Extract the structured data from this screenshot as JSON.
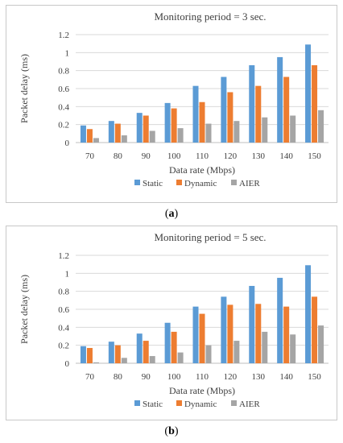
{
  "colors": {
    "static": "#5b9bd5",
    "dynamic": "#ed7d31",
    "aier": "#a5a5a5",
    "grid": "#d9d9d9",
    "axis": "#bfbfbf",
    "text": "#404040"
  },
  "captions": [
    {
      "open": "(",
      "letter": "a",
      "close": ")"
    },
    {
      "open": "(",
      "letter": "b",
      "close": ")"
    }
  ],
  "chart_data": [
    {
      "type": "bar",
      "title": "Monitoring period = 3 sec.",
      "xlabel": "Data rate (Mbps)",
      "ylabel": "Packet delay (ms)",
      "categories": [
        "70",
        "80",
        "90",
        "100",
        "110",
        "120",
        "130",
        "140",
        "150"
      ],
      "ylim": [
        0,
        1.2
      ],
      "yticks": [
        "0",
        "0.2",
        "0.4",
        "0.6",
        "0.8",
        "1",
        "1.2"
      ],
      "grid": true,
      "legend_position": "bottom",
      "series": [
        {
          "name": "Static",
          "values": [
            0.19,
            0.24,
            0.33,
            0.44,
            0.63,
            0.73,
            0.86,
            0.95,
            1.09
          ]
        },
        {
          "name": "Dynamic",
          "values": [
            0.15,
            0.21,
            0.3,
            0.38,
            0.45,
            0.56,
            0.63,
            0.73,
            0.86
          ]
        },
        {
          "name": "AIER",
          "values": [
            0.05,
            0.08,
            0.13,
            0.16,
            0.21,
            0.24,
            0.28,
            0.3,
            0.36
          ]
        }
      ]
    },
    {
      "type": "bar",
      "title": "Monitoring period = 5 sec.",
      "xlabel": "Data rate (Mbps)",
      "ylabel": "Packet delay (ms)",
      "categories": [
        "70",
        "80",
        "90",
        "100",
        "110",
        "120",
        "130",
        "140",
        "150"
      ],
      "ylim": [
        0,
        1.2
      ],
      "yticks": [
        "0",
        "0.2",
        "0.4",
        "0.6",
        "0.8",
        "1",
        "1.2"
      ],
      "grid": true,
      "legend_position": "bottom",
      "series": [
        {
          "name": "Static",
          "values": [
            0.19,
            0.24,
            0.33,
            0.45,
            0.63,
            0.74,
            0.86,
            0.95,
            1.09
          ]
        },
        {
          "name": "Dynamic",
          "values": [
            0.17,
            0.2,
            0.25,
            0.35,
            0.55,
            0.65,
            0.66,
            0.63,
            0.74
          ]
        },
        {
          "name": "AIER",
          "values": [
            0.01,
            0.06,
            0.08,
            0.12,
            0.2,
            0.25,
            0.35,
            0.32,
            0.42
          ]
        }
      ]
    }
  ]
}
